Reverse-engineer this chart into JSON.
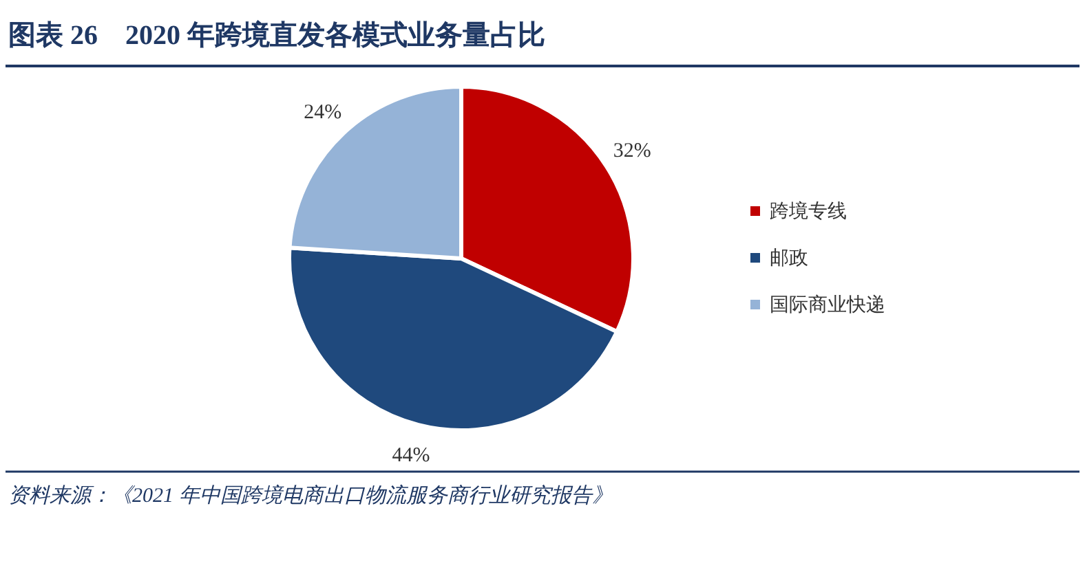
{
  "chart_data": {
    "type": "pie",
    "title": "图表 26　2020 年跨境直发各模式业务量占比",
    "categories": [
      "跨境专线",
      "邮政",
      "国际商业快递"
    ],
    "values": [
      32,
      44,
      24
    ],
    "colors": [
      "#c00000",
      "#1f497d",
      "#95b3d7"
    ],
    "value_labels": [
      "32%",
      "44%",
      "24%"
    ],
    "legend": "right",
    "annotations": [
      "资料来源：《2021 年中国跨境电商出口物流服务商行业研究报告》"
    ]
  }
}
